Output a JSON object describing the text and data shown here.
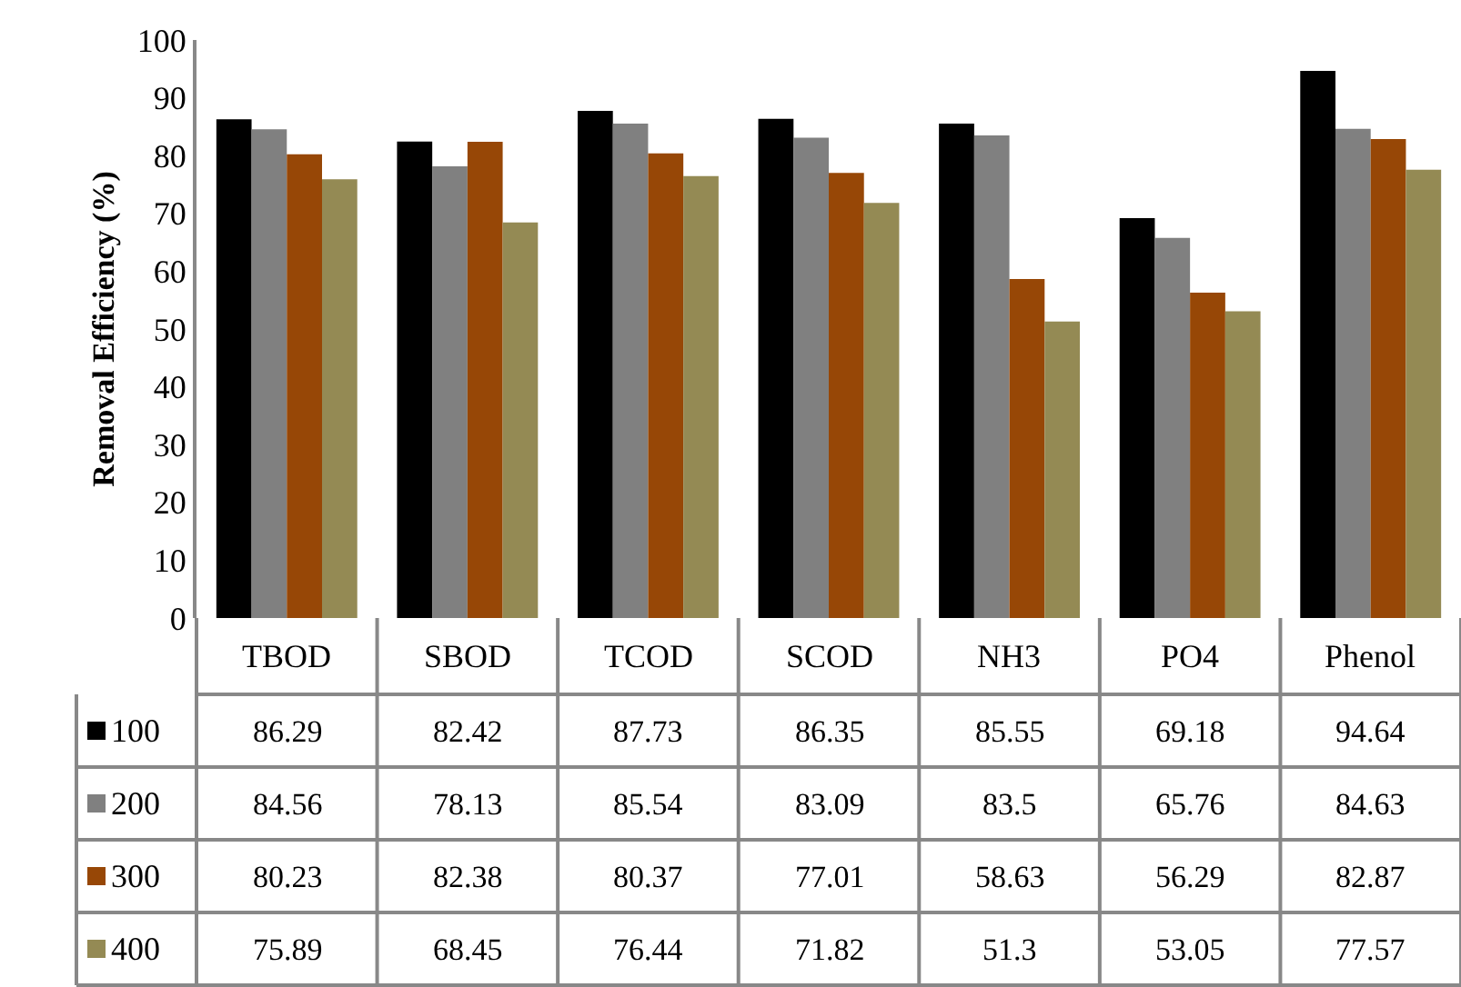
{
  "chart_data": {
    "type": "bar",
    "ylabel": "Removal Efficiency (%)",
    "categories": [
      "TBOD",
      "SBOD",
      "TCOD",
      "SCOD",
      "NH3",
      "PO4",
      "Phenol"
    ],
    "series": [
      {
        "name": "100",
        "color": "#000000",
        "values": [
          86.29,
          82.42,
          87.73,
          86.35,
          85.55,
          69.18,
          94.64
        ]
      },
      {
        "name": "200",
        "color": "#808080",
        "values": [
          84.56,
          78.13,
          85.54,
          83.09,
          83.5,
          65.76,
          84.63
        ]
      },
      {
        "name": "300",
        "color": "#974706",
        "values": [
          80.23,
          82.38,
          80.37,
          77.01,
          58.63,
          56.29,
          82.87
        ]
      },
      {
        "name": "400",
        "color": "#948a54",
        "values": [
          75.89,
          68.45,
          76.44,
          71.82,
          51.3,
          53.05,
          77.57
        ]
      }
    ],
    "ylim": [
      0,
      100
    ],
    "yticks": [
      0,
      10,
      20,
      30,
      40,
      50,
      60,
      70,
      80,
      90,
      100
    ],
    "legend": "bottom left",
    "data_labels": true
  }
}
